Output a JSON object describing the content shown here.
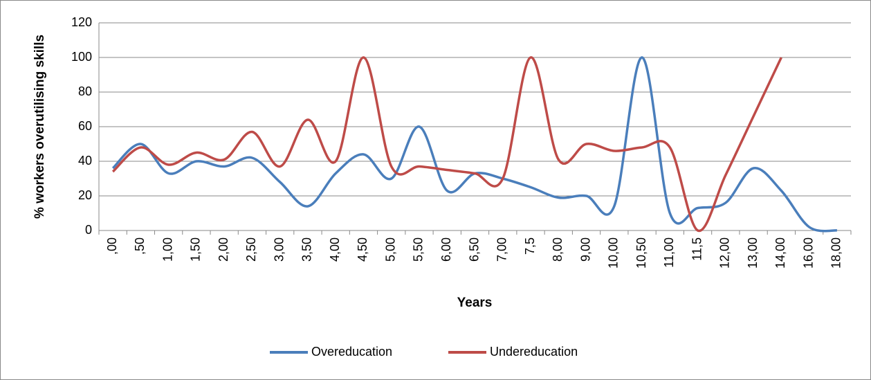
{
  "chart_data": {
    "type": "line",
    "smooth": true,
    "grid": true,
    "legend": "bottom",
    "xlabel": "Years",
    "ylabel": "% workers overutilising skills",
    "categories": [
      ",00",
      ",50",
      "1,00",
      "1,50",
      "2,00",
      "2,50",
      "3,00",
      "3,50",
      "4,00",
      "4,50",
      "5,00",
      "5,50",
      "6,00",
      "6,50",
      "7,00",
      "7,5",
      "8,00",
      "9,00",
      "10,00",
      "10,50",
      "11,00",
      "11,5",
      "12,00",
      "13,00",
      "14,00",
      "16,00",
      "18,00"
    ],
    "series": [
      {
        "name": "Overeducation",
        "color": "#4a7ebb",
        "values": [
          36,
          50,
          33,
          40,
          37,
          42,
          28,
          14,
          33,
          44,
          30,
          60,
          23,
          33,
          30,
          25,
          19,
          20,
          14,
          100,
          10,
          13,
          16,
          36,
          23,
          2,
          0
        ]
      },
      {
        "name": "Undereducation",
        "color": "#be4b48",
        "values": [
          34,
          48,
          38,
          45,
          41,
          57,
          37,
          64,
          40,
          100,
          37,
          37,
          35,
          33,
          30,
          100,
          41,
          50,
          46,
          48,
          48,
          0,
          32,
          66,
          100,
          null,
          null
        ]
      }
    ],
    "ylim": [
      0,
      120
    ],
    "yticks": [
      0,
      20,
      40,
      60,
      80,
      100,
      120
    ]
  }
}
